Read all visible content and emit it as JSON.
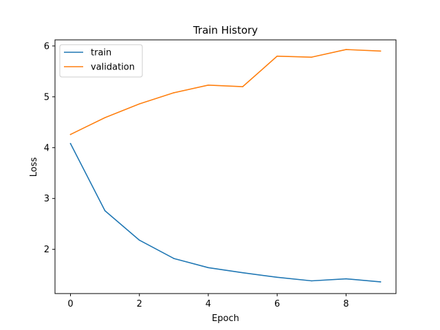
{
  "chart_data": {
    "type": "line",
    "title": "Train History",
    "xlabel": "Epoch",
    "ylabel": "Loss",
    "x": [
      0,
      1,
      2,
      3,
      4,
      5,
      6,
      7,
      8,
      9
    ],
    "xlim": [
      -0.45,
      9.45
    ],
    "ylim": [
      1.13,
      6.12
    ],
    "xticks": [
      0,
      2,
      4,
      6,
      8
    ],
    "yticks": [
      2,
      3,
      4,
      5,
      6
    ],
    "grid": false,
    "legend_position": "upper-left",
    "series": [
      {
        "name": "train",
        "color": "#1f77b4",
        "values": [
          4.08,
          2.76,
          2.18,
          1.82,
          1.64,
          1.54,
          1.45,
          1.38,
          1.42,
          1.36
        ]
      },
      {
        "name": "validation",
        "color": "#ff7f0e",
        "values": [
          4.26,
          4.59,
          4.86,
          5.08,
          5.23,
          5.2,
          5.8,
          5.78,
          5.93,
          5.9
        ]
      }
    ]
  }
}
